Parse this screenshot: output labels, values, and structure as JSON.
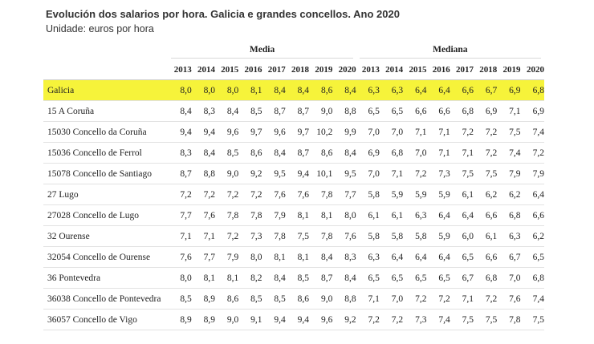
{
  "header": {
    "title": "Evolución dos salarios por hora. Galicia e grandes concellos. Ano 2020",
    "subtitle": "Unidade: euros por hora"
  },
  "table": {
    "group_media": "Media",
    "group_mediana": "Mediana",
    "years": [
      "2013",
      "2014",
      "2015",
      "2016",
      "2017",
      "2018",
      "2019",
      "2020"
    ],
    "highlight_color": "#f6f33a",
    "rows": [
      {
        "name": "Galicia",
        "media": [
          "8,0",
          "8,0",
          "8,0",
          "8,1",
          "8,4",
          "8,4",
          "8,6",
          "8,4"
        ],
        "mediana": [
          "6,3",
          "6,3",
          "6,4",
          "6,4",
          "6,6",
          "6,7",
          "6,9",
          "6,8"
        ]
      },
      {
        "name": "15 A Coruña",
        "media": [
          "8,4",
          "8,3",
          "8,4",
          "8,5",
          "8,7",
          "8,7",
          "9,0",
          "8,8"
        ],
        "mediana": [
          "6,5",
          "6,5",
          "6,6",
          "6,6",
          "6,8",
          "6,9",
          "7,1",
          "6,9"
        ]
      },
      {
        "name": "15030 Concello da Coruña",
        "media": [
          "9,4",
          "9,4",
          "9,6",
          "9,7",
          "9,6",
          "9,7",
          "10,2",
          "9,9"
        ],
        "mediana": [
          "7,0",
          "7,0",
          "7,1",
          "7,1",
          "7,2",
          "7,2",
          "7,5",
          "7,4"
        ]
      },
      {
        "name": "15036 Concello de Ferrol",
        "media": [
          "8,3",
          "8,4",
          "8,5",
          "8,6",
          "8,4",
          "8,7",
          "8,6",
          "8,4"
        ],
        "mediana": [
          "6,9",
          "6,8",
          "7,0",
          "7,1",
          "7,1",
          "7,2",
          "7,4",
          "7,2"
        ]
      },
      {
        "name": "15078 Concello de Santiago",
        "media": [
          "8,7",
          "8,8",
          "9,0",
          "9,2",
          "9,5",
          "9,4",
          "10,1",
          "9,5"
        ],
        "mediana": [
          "7,0",
          "7,1",
          "7,2",
          "7,3",
          "7,5",
          "7,5",
          "7,9",
          "7,9"
        ]
      },
      {
        "name": "27 Lugo",
        "media": [
          "7,2",
          "7,2",
          "7,2",
          "7,2",
          "7,6",
          "7,6",
          "7,8",
          "7,7"
        ],
        "mediana": [
          "5,8",
          "5,9",
          "5,9",
          "5,9",
          "6,1",
          "6,2",
          "6,2",
          "6,4"
        ]
      },
      {
        "name": "27028 Concello de Lugo",
        "media": [
          "7,7",
          "7,6",
          "7,8",
          "7,8",
          "7,9",
          "8,1",
          "8,1",
          "8,0"
        ],
        "mediana": [
          "6,1",
          "6,1",
          "6,3",
          "6,4",
          "6,4",
          "6,6",
          "6,8",
          "6,6"
        ]
      },
      {
        "name": "32 Ourense",
        "media": [
          "7,1",
          "7,1",
          "7,2",
          "7,3",
          "7,8",
          "7,5",
          "7,8",
          "7,6"
        ],
        "mediana": [
          "5,8",
          "5,8",
          "5,8",
          "5,9",
          "6,0",
          "6,1",
          "6,3",
          "6,2"
        ]
      },
      {
        "name": "32054 Concello de Ourense",
        "media": [
          "7,6",
          "7,7",
          "7,9",
          "8,0",
          "8,1",
          "8,1",
          "8,4",
          "8,3"
        ],
        "mediana": [
          "6,3",
          "6,4",
          "6,4",
          "6,4",
          "6,5",
          "6,6",
          "6,7",
          "6,5"
        ]
      },
      {
        "name": "36 Pontevedra",
        "media": [
          "8,0",
          "8,1",
          "8,1",
          "8,2",
          "8,4",
          "8,5",
          "8,7",
          "8,4"
        ],
        "mediana": [
          "6,5",
          "6,5",
          "6,5",
          "6,5",
          "6,7",
          "6,8",
          "7,0",
          "6,8"
        ]
      },
      {
        "name": "36038 Concello de Pontevedra",
        "media": [
          "8,5",
          "8,9",
          "8,6",
          "8,5",
          "8,5",
          "8,6",
          "9,0",
          "8,8"
        ],
        "mediana": [
          "7,1",
          "7,0",
          "7,2",
          "7,2",
          "7,1",
          "7,2",
          "7,6",
          "7,4"
        ]
      },
      {
        "name": "36057 Concello de Vigo",
        "media": [
          "8,9",
          "8,9",
          "9,0",
          "9,1",
          "9,4",
          "9,4",
          "9,6",
          "9,2"
        ],
        "mediana": [
          "7,2",
          "7,2",
          "7,3",
          "7,4",
          "7,5",
          "7,5",
          "7,8",
          "7,5"
        ]
      }
    ]
  }
}
